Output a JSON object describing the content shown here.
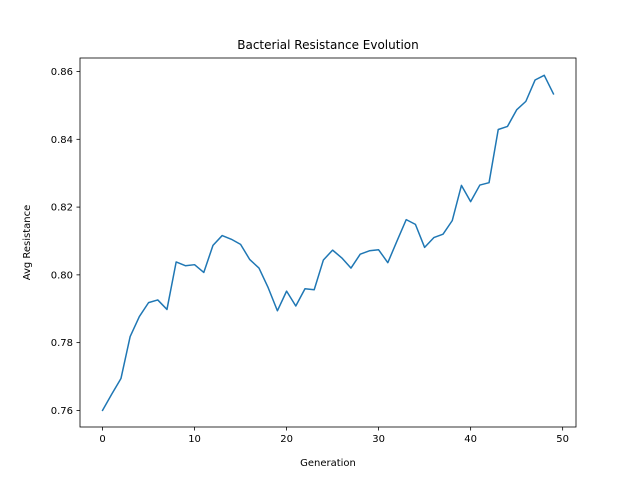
{
  "chart_data": {
    "type": "line",
    "title": "Bacterial Resistance Evolution",
    "xlabel": "Generation",
    "ylabel": "Avg Resistance",
    "xlim": [
      -2.45,
      51.45
    ],
    "ylim": [
      0.7551,
      0.864
    ],
    "xticks": [
      0,
      10,
      20,
      30,
      40,
      50
    ],
    "yticks": [
      0.76,
      0.78,
      0.8,
      0.82,
      0.84,
      0.86
    ],
    "ytick_labels": [
      "0.76",
      "0.78",
      "0.80",
      "0.82",
      "0.84",
      "0.86"
    ],
    "grid": false,
    "series": [
      {
        "color": "#1f77b4",
        "x": [
          0,
          1,
          2,
          3,
          4,
          5,
          6,
          7,
          8,
          9,
          10,
          11,
          12,
          13,
          14,
          15,
          16,
          17,
          18,
          19,
          20,
          21,
          22,
          23,
          24,
          25,
          26,
          27,
          28,
          29,
          30,
          31,
          32,
          33,
          34,
          35,
          36,
          37,
          38,
          39,
          40,
          41,
          42,
          43,
          44,
          45,
          46,
          47,
          48,
          49
        ],
        "y": [
          0.76,
          0.7648,
          0.7694,
          0.7818,
          0.7877,
          0.7918,
          0.7926,
          0.7898,
          0.8038,
          0.8027,
          0.803,
          0.8007,
          0.8087,
          0.8116,
          0.8105,
          0.809,
          0.8045,
          0.802,
          0.7962,
          0.7894,
          0.7952,
          0.7908,
          0.7959,
          0.7956,
          0.8044,
          0.8073,
          0.805,
          0.802,
          0.8061,
          0.8071,
          0.8074,
          0.8036,
          0.81,
          0.8163,
          0.8149,
          0.8081,
          0.811,
          0.812,
          0.816,
          0.8264,
          0.8216,
          0.8265,
          0.8272,
          0.8429,
          0.8438,
          0.8487,
          0.8512,
          0.8575,
          0.8589,
          0.8534
        ]
      }
    ]
  }
}
